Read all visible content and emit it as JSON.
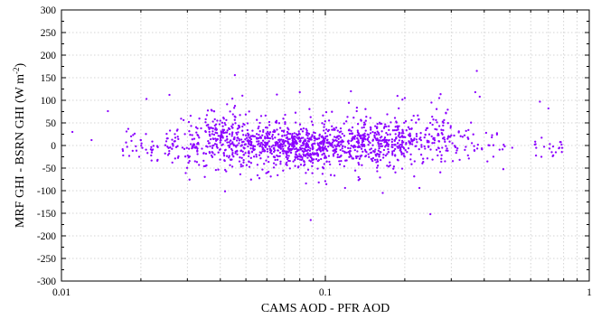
{
  "chart_data": {
    "type": "scatter",
    "xlabel": "CAMS AOD - PFR AOD",
    "ylabel_main": "MRF GHI - BSRN GHI  (W m",
    "ylabel_sup": "-2",
    "ylabel_end": ")",
    "x_scale": "log",
    "xlim": [
      0.01,
      1
    ],
    "ylim": [
      -300,
      300
    ],
    "x_ticks": [
      0.01,
      0.1,
      1
    ],
    "x_tick_labels": [
      "0.01",
      "0.1",
      "1"
    ],
    "y_ticks": [
      -300,
      -250,
      -200,
      -150,
      -100,
      -50,
      0,
      50,
      100,
      150,
      200,
      250,
      300
    ],
    "y_tick_labels": [
      "-300",
      "-250",
      "-200",
      "-150",
      "-100",
      "-50",
      "0",
      "50",
      "100",
      "150",
      "200",
      "250",
      "300"
    ],
    "grid": true,
    "marker_color": "#8B00FF",
    "points_note_outliers": [
      [
        0.011,
        30
      ],
      [
        0.013,
        12
      ],
      [
        0.015,
        76
      ],
      [
        0.021,
        103
      ],
      [
        0.088,
        -165
      ],
      [
        0.165,
        -105
      ],
      [
        0.25,
        -152
      ],
      [
        0.375,
        165
      ],
      [
        0.37,
        118
      ],
      [
        0.65,
        97
      ],
      [
        0.7,
        82
      ],
      [
        0.125,
        120
      ],
      [
        0.08,
        118
      ],
      [
        0.2,
        105
      ],
      [
        0.27,
        105
      ]
    ],
    "density_bands": [
      {
        "x_min": 0.017,
        "x_max": 0.025,
        "count": 40,
        "y_center": 0,
        "y_spread": 25
      },
      {
        "x_min": 0.025,
        "x_max": 0.035,
        "count": 90,
        "y_center": 2,
        "y_spread": 25
      },
      {
        "x_min": 0.035,
        "x_max": 0.05,
        "count": 230,
        "y_center": 8,
        "y_spread": 30
      },
      {
        "x_min": 0.05,
        "x_max": 0.07,
        "count": 230,
        "y_center": 0,
        "y_spread": 24
      },
      {
        "x_min": 0.07,
        "x_max": 0.1,
        "count": 330,
        "y_center": -3,
        "y_spread": 28
      },
      {
        "x_min": 0.1,
        "x_max": 0.14,
        "count": 220,
        "y_center": 2,
        "y_spread": 26
      },
      {
        "x_min": 0.14,
        "x_max": 0.2,
        "count": 230,
        "y_center": 4,
        "y_spread": 28
      },
      {
        "x_min": 0.2,
        "x_max": 0.3,
        "count": 140,
        "y_center": 15,
        "y_spread": 30
      },
      {
        "x_min": 0.3,
        "x_max": 0.45,
        "count": 45,
        "y_center": 5,
        "y_spread": 28
      },
      {
        "x_min": 0.45,
        "x_max": 0.55,
        "count": 6,
        "y_center": -5,
        "y_spread": 15
      },
      {
        "x_min": 0.62,
        "x_max": 0.8,
        "count": 22,
        "y_center": -10,
        "y_spread": 15
      }
    ]
  }
}
